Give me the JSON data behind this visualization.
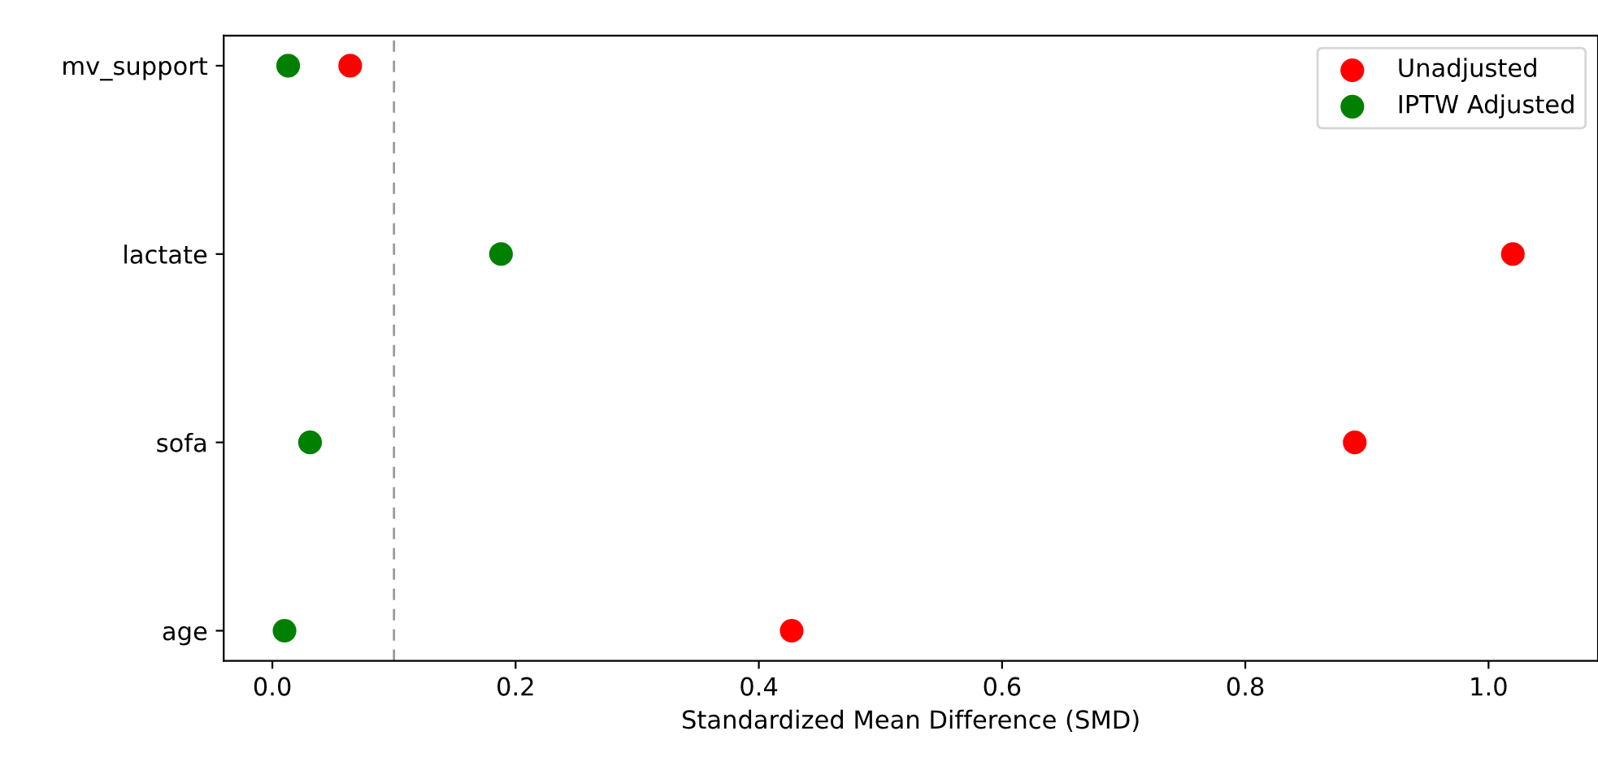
{
  "chart_data": {
    "type": "scatter",
    "orientation": "horizontal",
    "xlabel": "Standardized Mean Difference (SMD)",
    "categories": [
      "mv_support",
      "lactate",
      "sofa",
      "age"
    ],
    "series": [
      {
        "name": "Unadjusted",
        "color": "#ff0000",
        "values": [
          0.064,
          1.02,
          0.89,
          0.427
        ]
      },
      {
        "name": "IPTW Adjusted",
        "color": "#008000",
        "values": [
          0.013,
          0.188,
          0.031,
          0.01
        ]
      }
    ],
    "xlim": [
      -0.04,
      1.09
    ],
    "xticks": [
      {
        "value": 0,
        "label": "0.0"
      },
      0.2,
      0.4,
      0.6,
      0.8,
      {
        "value": 1,
        "label": "1.0"
      }
    ],
    "ref_lines": [
      {
        "axis": "x",
        "value": 0.1,
        "color": "#999999",
        "line_style": "dashed"
      }
    ],
    "grid": false,
    "legend": "top right",
    "marker": "circle"
  }
}
